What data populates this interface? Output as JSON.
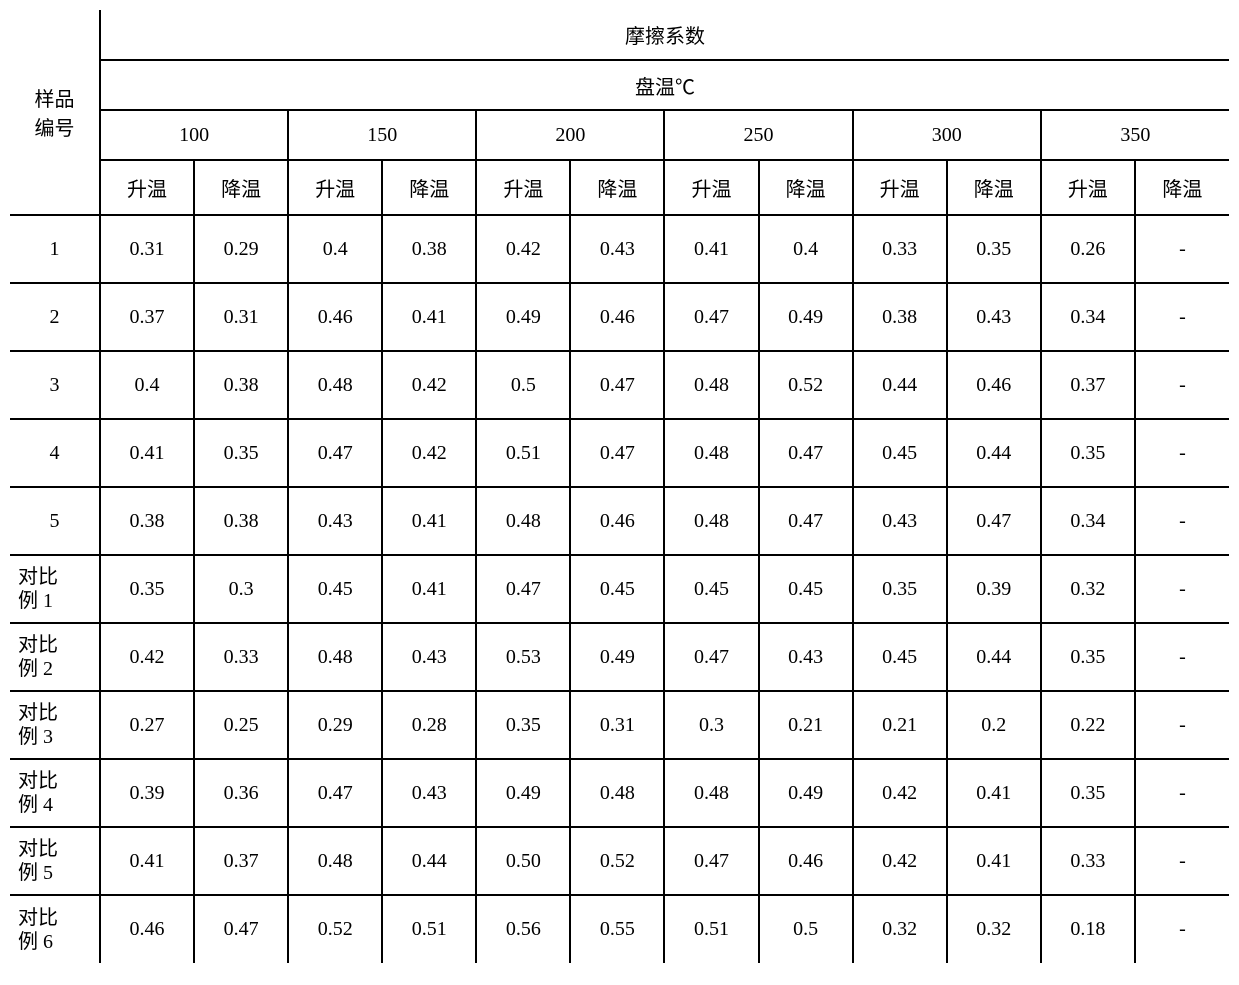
{
  "table": {
    "title": "摩擦系数",
    "subtitle": "盘温℃",
    "sample_header": "样品\n编号",
    "temperatures": [
      "100",
      "150",
      "200",
      "250",
      "300",
      "350"
    ],
    "sub_headers": [
      "升温",
      "降温"
    ],
    "rows": [
      {
        "id": "1",
        "multi": false,
        "values": [
          "0.31",
          "0.29",
          "0.4",
          "0.38",
          "0.42",
          "0.43",
          "0.41",
          "0.4",
          "0.33",
          "0.35",
          "0.26",
          "-"
        ]
      },
      {
        "id": "2",
        "multi": false,
        "values": [
          "0.37",
          "0.31",
          "0.46",
          "0.41",
          "0.49",
          "0.46",
          "0.47",
          "0.49",
          "0.38",
          "0.43",
          "0.34",
          "-"
        ]
      },
      {
        "id": "3",
        "multi": false,
        "values": [
          "0.4",
          "0.38",
          "0.48",
          "0.42",
          "0.5",
          "0.47",
          "0.48",
          "0.52",
          "0.44",
          "0.46",
          "0.37",
          "-"
        ]
      },
      {
        "id": "4",
        "multi": false,
        "values": [
          "0.41",
          "0.35",
          "0.47",
          "0.42",
          "0.51",
          "0.47",
          "0.48",
          "0.47",
          "0.45",
          "0.44",
          "0.35",
          "-"
        ]
      },
      {
        "id": "5",
        "multi": false,
        "values": [
          "0.38",
          "0.38",
          "0.43",
          "0.41",
          "0.48",
          "0.46",
          "0.48",
          "0.47",
          "0.43",
          "0.47",
          "0.34",
          "-"
        ]
      },
      {
        "id": "对比\n例 1",
        "multi": true,
        "values": [
          "0.35",
          "0.3",
          "0.45",
          "0.41",
          "0.47",
          "0.45",
          "0.45",
          "0.45",
          "0.35",
          "0.39",
          "0.32",
          "-"
        ]
      },
      {
        "id": "对比\n例 2",
        "multi": true,
        "values": [
          "0.42",
          "0.33",
          "0.48",
          "0.43",
          "0.53",
          "0.49",
          "0.47",
          "0.43",
          "0.45",
          "0.44",
          "0.35",
          "-"
        ]
      },
      {
        "id": "对比\n例 3",
        "multi": true,
        "values": [
          "0.27",
          "0.25",
          "0.29",
          "0.28",
          "0.35",
          "0.31",
          "0.3",
          "0.21",
          "0.21",
          "0.2",
          "0.22",
          "-"
        ]
      },
      {
        "id": "对比\n例 4",
        "multi": true,
        "values": [
          "0.39",
          "0.36",
          "0.47",
          "0.43",
          "0.49",
          "0.48",
          "0.48",
          "0.49",
          "0.42",
          "0.41",
          "0.35",
          "-"
        ]
      },
      {
        "id": "对比\n例 5",
        "multi": true,
        "values": [
          "0.41",
          "0.37",
          "0.48",
          "0.44",
          "0.50",
          "0.52",
          "0.47",
          "0.46",
          "0.42",
          "0.41",
          "0.33",
          "-"
        ]
      },
      {
        "id": "对比\n例 6",
        "multi": true,
        "values": [
          "0.46",
          "0.47",
          "0.52",
          "0.51",
          "0.56",
          "0.55",
          "0.51",
          "0.5",
          "0.32",
          "0.32",
          "0.18",
          "-"
        ]
      }
    ]
  },
  "styling": {
    "border_color": "#000000",
    "border_width": 2,
    "background_color": "#ffffff",
    "text_color": "#000000",
    "font_family": "SimSun",
    "header_fontsize": 20,
    "cell_fontsize": 20,
    "row_header_col_width": 90,
    "data_col_width": 95,
    "header_row_height": 50,
    "sub_header_row_height": 55,
    "data_row_height": 68,
    "num_data_columns": 12,
    "num_temp_groups": 6
  }
}
